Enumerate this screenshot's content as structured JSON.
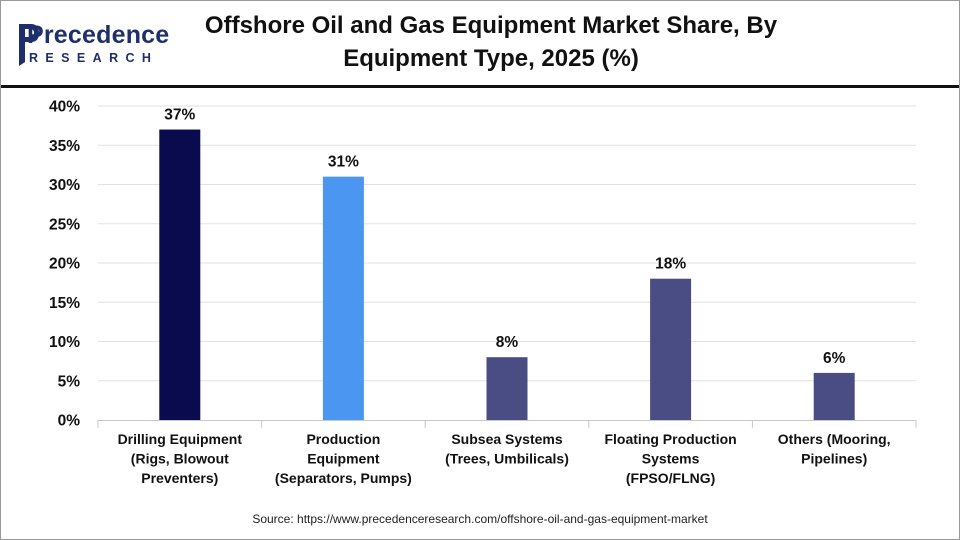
{
  "header": {
    "logo_word": "Precedence",
    "logo_sub": "RESEARCH",
    "title_line1": "Offshore Oil and Gas Equipment Market Share, By",
    "title_line2": "Equipment Type, 2025 (%)"
  },
  "source": "Source: https://www.precedenceresearch.com/offshore-oil-and-gas-equipment-market",
  "colors": {
    "logo": "#1f2f6b",
    "bar_drilling": "#0a0b4f",
    "bar_production": "#4a96f0",
    "bar_other": "#4a4c84"
  },
  "chart_data": {
    "type": "bar",
    "title": "Offshore Oil and Gas Equipment Market Share, By Equipment Type, 2025 (%)",
    "categories": [
      [
        "Drilling Equipment",
        "(Rigs, Blowout",
        "Preventers)"
      ],
      [
        "Production",
        "Equipment",
        "(Separators, Pumps)"
      ],
      [
        "Subsea Systems",
        "(Trees, Umbilicals)"
      ],
      [
        "Floating Production",
        "Systems",
        "(FPSO/FLNG)"
      ],
      [
        "Others (Mooring,",
        "Pipelines)"
      ]
    ],
    "values": [
      37,
      31,
      8,
      18,
      6
    ],
    "data_labels": [
      "37%",
      "31%",
      "8%",
      "18%",
      "6%"
    ],
    "bar_colors": [
      "#0a0b4f",
      "#4a96f0",
      "#4a4c84",
      "#4a4c84",
      "#4a4c84"
    ],
    "yticks": [
      "0%",
      "5%",
      "10%",
      "15%",
      "20%",
      "25%",
      "30%",
      "35%",
      "40%"
    ],
    "ylim": [
      0,
      40
    ],
    "xlabel": "",
    "ylabel": "",
    "grid": true,
    "legend": "none"
  }
}
